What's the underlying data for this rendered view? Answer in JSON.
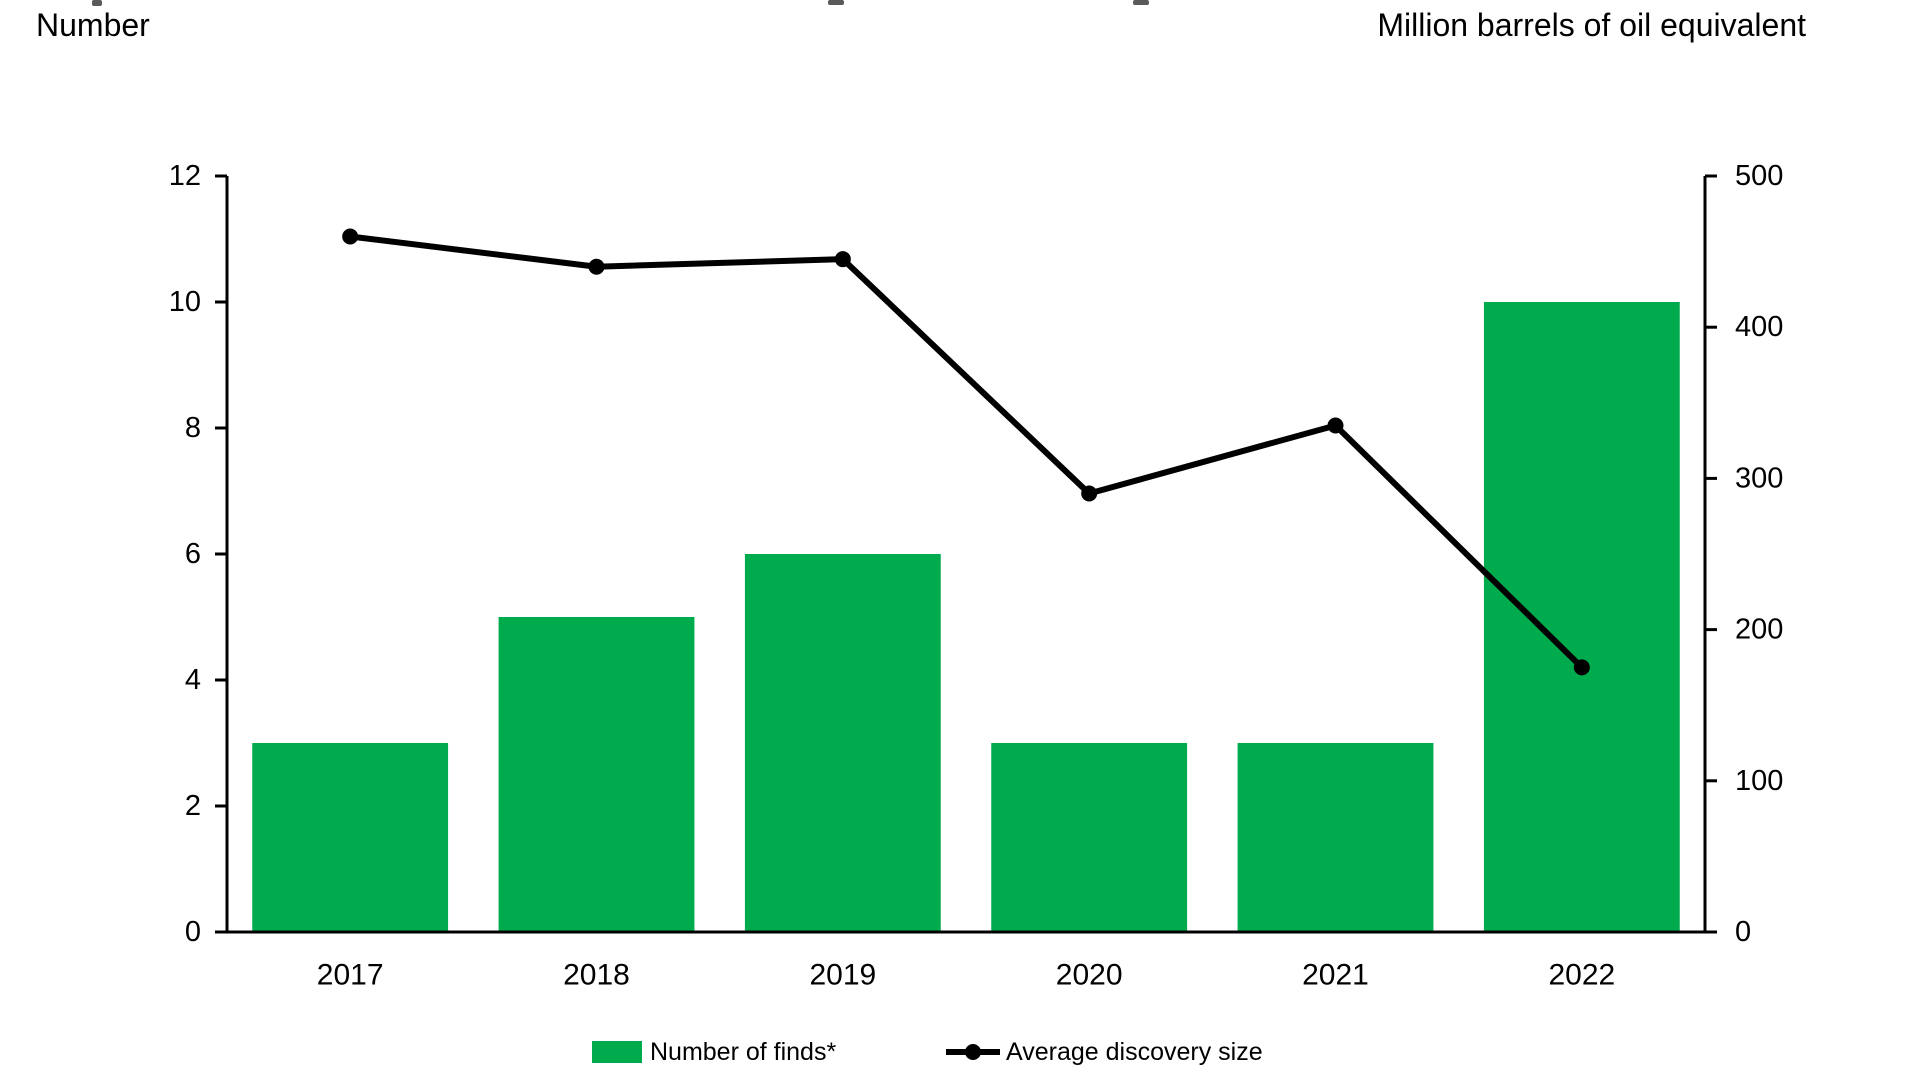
{
  "page": {
    "background": "#ffffff"
  },
  "colors": {
    "bar": "#00AB4E",
    "line": "#000000",
    "axis": "#000000",
    "text": "#000000"
  },
  "legend": {
    "items": [
      {
        "label": "Number of finds*",
        "symbol": "bar-swatch"
      },
      {
        "label": "Average discovery size",
        "symbol": "line-marker"
      }
    ]
  },
  "chart_data": {
    "type": "bar",
    "subtype": "bar+line dual axis",
    "categories": [
      "2017",
      "2018",
      "2019",
      "2020",
      "2021",
      "2022"
    ],
    "series": [
      {
        "name": "Number of finds*",
        "type": "bar",
        "axis": "left",
        "values": [
          3,
          5,
          6,
          3,
          3,
          10
        ]
      },
      {
        "name": "Average discovery size",
        "type": "line",
        "axis": "right",
        "values": [
          460,
          440,
          445,
          290,
          335,
          175
        ]
      }
    ],
    "left_axis": {
      "title": "Number",
      "min": 0,
      "max": 12,
      "step": 2,
      "ticks": [
        0,
        2,
        4,
        6,
        8,
        10,
        12
      ]
    },
    "right_axis": {
      "title": "Million barrels of oil equivalent",
      "min": 0,
      "max": 500,
      "step": 100,
      "ticks": [
        0,
        100,
        200,
        300,
        400,
        500
      ]
    },
    "grid": "off",
    "legend_position": "bottom-center"
  }
}
